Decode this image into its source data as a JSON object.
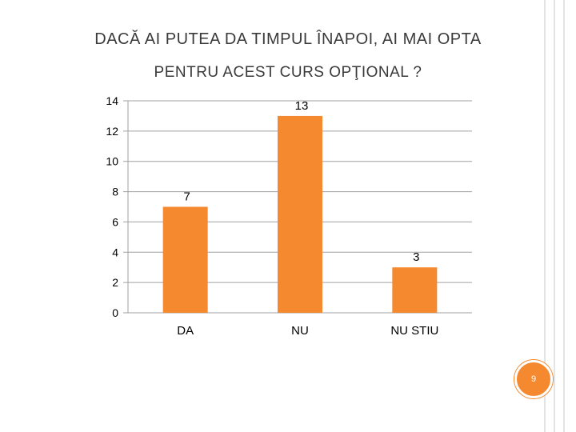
{
  "slide": {
    "title_line1": "DACĂ AI PUTEA DA TIMPUL ÎNAPOI, AI MAI OPTA",
    "title_line2": "PENTRU ACEST CURS OPŢIONAL ?",
    "page_number": "9"
  },
  "colors": {
    "bar": "#f5892f",
    "grid": "#a0a0a0",
    "text": "#000000",
    "badge": "#f5892f"
  },
  "chart_data": {
    "type": "bar",
    "categories": [
      "DA",
      "NU",
      "NU STIU"
    ],
    "values": [
      7,
      13,
      3
    ],
    "data_labels": [
      "7",
      "13",
      "3"
    ],
    "y_ticks": [
      "0",
      "2",
      "4",
      "6",
      "8",
      "10",
      "12",
      "14"
    ],
    "ylim": [
      0,
      14
    ],
    "grid": true,
    "legend": "none"
  }
}
